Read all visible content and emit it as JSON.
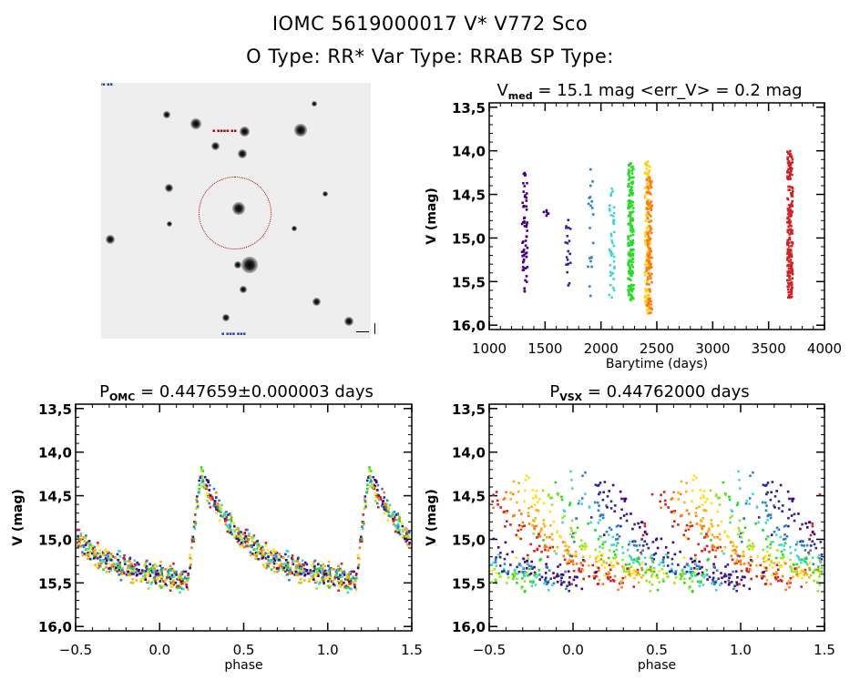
{
  "header": {
    "title": "IOMC 5619000017    V* V772 Sco",
    "subtitle": "O Type: RR*  Var Type: RRAB  SP Type:"
  },
  "thumbnail": {
    "description": "sky image cutout with target circle",
    "target_label": "V* V772 Sco"
  },
  "chart_data": [
    {
      "type": "scatter",
      "title_main": "V",
      "title_sub": "med",
      "title_rest": " = 15.1 mag <err_V> = 0.2 mag",
      "xlabel": "Barytime (days)",
      "ylabel": "V (mag)",
      "xlim": [
        1000,
        4000
      ],
      "ylim": [
        16.05,
        13.45
      ],
      "y_inverted": true,
      "xticks": [
        "1000",
        "1500",
        "2000",
        "2500",
        "3000",
        "3500",
        "4000"
      ],
      "yticks": [
        "13.5",
        "14.0",
        "14.5",
        "15.0",
        "15.5",
        "16.0"
      ],
      "grid": false,
      "groups": [
        {
          "x": 1315,
          "ymin": 14.24,
          "ymax": 15.6,
          "n": 60,
          "color": "#4b0082"
        },
        {
          "x": 1510,
          "ymin": 14.67,
          "ymax": 14.73,
          "n": 4,
          "color": "#4b0082"
        },
        {
          "x": 1705,
          "ymin": 14.78,
          "ymax": 15.53,
          "n": 18,
          "color": "#2a2a9a"
        },
        {
          "x": 1905,
          "ymin": 14.2,
          "ymax": 15.65,
          "n": 18,
          "color": "#2f7fc8"
        },
        {
          "x": 2095,
          "ymin": 14.42,
          "ymax": 15.67,
          "n": 40,
          "color": "#3fd8d0"
        },
        {
          "x": 2265,
          "ymin": 14.13,
          "ymax": 15.7,
          "n": 160,
          "color": "#22dd22"
        },
        {
          "x": 2415,
          "ymin": 14.11,
          "ymax": 15.85,
          "n": 120,
          "color": "#ffd21a"
        },
        {
          "x": 2430,
          "ymin": 14.29,
          "ymax": 15.85,
          "n": 120,
          "color": "#ff7a10"
        },
        {
          "x": 3690,
          "ymin": 13.99,
          "ymax": 15.67,
          "n": 200,
          "color": "#d42020"
        }
      ]
    },
    {
      "type": "scatter",
      "title_main": "P",
      "title_sub": "OMC",
      "title_rest": " = 0.447659±0.000003 days",
      "xlabel": "phase",
      "ylabel": "V (mag)",
      "xlim": [
        -0.5,
        1.5
      ],
      "ylim": [
        16.05,
        13.45
      ],
      "y_inverted": true,
      "xticks": [
        "-0.5",
        "0.0",
        "0.5",
        "1.0",
        "1.5"
      ],
      "yticks": [
        "13.5",
        "14.0",
        "14.5",
        "15.0",
        "15.5",
        "16.0"
      ],
      "grid": false,
      "model": {
        "min_mag": 15.35,
        "max_mag": 14.25,
        "rise_start": 0.16,
        "peak": 0.24,
        "scatter": 0.13,
        "phase_offset": 0.0
      },
      "n_points": 620
    },
    {
      "type": "scatter",
      "title_main": "P",
      "title_sub": "VSX",
      "title_rest": " = 0.44762000 days",
      "xlabel": "phase",
      "ylabel": "V (mag)",
      "xlim": [
        -0.5,
        1.5
      ],
      "ylim": [
        16.05,
        13.45
      ],
      "y_inverted": true,
      "xticks": [
        "-0.5",
        "0.0",
        "0.5",
        "1.0",
        "1.5"
      ],
      "yticks": [
        "13.5",
        "14.0",
        "14.5",
        "15.0",
        "15.5",
        "16.0"
      ],
      "grid": false,
      "model": {
        "min_mag": 15.35,
        "max_mag": 14.3,
        "rise_start": 0.12,
        "peak": 0.22,
        "scatter": 0.14,
        "phase_drift": 0.75
      },
      "n_points": 620
    }
  ],
  "palette": [
    "#4b0082",
    "#2a2a9a",
    "#2f7fc8",
    "#3fd8d0",
    "#22dd22",
    "#9be61e",
    "#ffe11a",
    "#ffb014",
    "#ff7a10",
    "#d42020"
  ]
}
